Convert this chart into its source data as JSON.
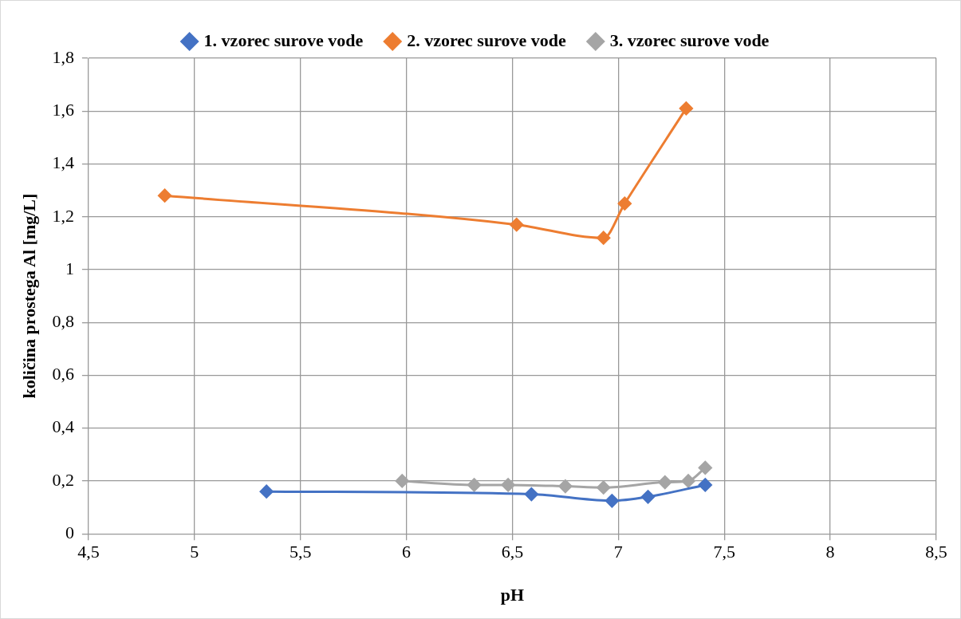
{
  "chart_data": {
    "type": "line",
    "xlabel": "pH",
    "ylabel": "količina prostega Al [mg/L]",
    "xlim": [
      4.5,
      8.5
    ],
    "xticks": [
      {
        "value": 4.5,
        "label": "4,5"
      },
      5,
      {
        "value": 5.5,
        "label": "5,5"
      },
      6,
      {
        "value": 6.5,
        "label": "6,5"
      },
      7,
      {
        "value": 7.5,
        "label": "7,5"
      },
      8,
      {
        "value": 8.5,
        "label": "8,5"
      }
    ],
    "ylim": [
      0,
      1.8
    ],
    "yticks": [
      0,
      {
        "value": 0.2,
        "label": "0,2"
      },
      {
        "value": 0.4,
        "label": "0,4"
      },
      {
        "value": 0.6,
        "label": "0,6"
      },
      {
        "value": 0.8,
        "label": "0,8"
      },
      1,
      {
        "value": 1.2,
        "label": "1,2"
      },
      {
        "value": 1.4,
        "label": "1,4"
      },
      {
        "value": 1.6,
        "label": "1,6"
      },
      {
        "value": 1.8,
        "label": "1,8"
      }
    ],
    "grid": true,
    "legend": "top",
    "marker": "diamond",
    "line_style": "solid",
    "series": [
      {
        "name": "1. vzorec surove vode",
        "color": "#4472c4",
        "x": [
          5.34,
          6.59,
          6.97,
          7.14,
          7.41
        ],
        "values": [
          0.16,
          0.15,
          0.125,
          0.14,
          0.185
        ]
      },
      {
        "name": "2. vzorec surove vode",
        "color": "#ed7d31",
        "x": [
          4.86,
          6.52,
          6.93,
          7.03,
          7.32
        ],
        "values": [
          1.28,
          1.17,
          1.12,
          1.25,
          1.61
        ]
      },
      {
        "name": "3. vzorec surove vode",
        "color": "#a5a5a5",
        "x": [
          5.98,
          6.32,
          6.48,
          6.75,
          6.93,
          7.22,
          7.33,
          7.41
        ],
        "values": [
          0.2,
          0.185,
          0.185,
          0.18,
          0.175,
          0.195,
          0.2,
          0.25
        ]
      }
    ]
  }
}
